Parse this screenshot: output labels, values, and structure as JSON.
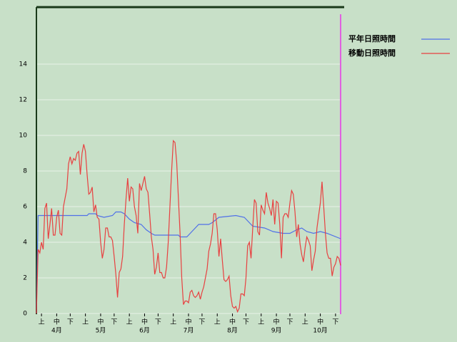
{
  "chart_data": {
    "type": "line",
    "x": [
      0,
      1,
      2,
      3,
      4,
      5,
      6,
      7,
      8,
      9,
      10,
      11,
      12,
      13,
      14,
      15,
      16,
      17,
      18,
      19,
      20,
      21,
      22,
      23,
      24,
      25,
      26,
      27,
      28,
      29,
      30,
      31,
      32,
      33,
      34,
      35,
      36,
      37,
      38,
      39,
      40,
      41,
      42,
      43,
      44,
      45,
      46,
      47,
      48,
      49,
      50,
      51,
      52,
      53,
      54,
      55,
      56,
      57,
      58,
      59,
      60,
      61,
      62,
      63,
      64,
      65,
      66,
      67,
      68,
      69,
      70,
      71,
      72,
      73,
      74,
      75,
      76,
      77,
      78,
      79,
      80,
      81,
      82,
      83,
      84,
      85,
      86,
      87,
      88,
      89,
      90,
      91,
      92,
      93,
      94,
      95,
      96,
      97,
      98,
      99,
      100,
      101,
      102,
      103,
      104,
      105,
      106,
      107,
      108,
      109,
      110,
      111,
      112,
      113,
      114,
      115,
      116,
      117,
      118,
      119,
      120,
      121,
      122,
      123,
      124,
      125,
      126,
      127,
      128,
      129,
      130,
      131,
      132,
      133,
      134,
      135,
      136,
      137,
      138,
      139,
      140,
      141,
      142,
      143,
      144,
      145,
      146,
      147,
      148,
      149,
      150,
      151,
      152,
      153,
      154,
      155,
      156,
      157,
      158,
      159,
      160,
      161,
      162,
      163,
      164,
      165,
      166,
      167,
      168,
      169,
      170,
      171,
      172,
      173,
      174,
      175,
      176,
      177,
      178,
      179,
      180
    ],
    "series": [
      {
        "name": "平年日照時間",
        "color": "#5070e8",
        "x": [
          0,
          1,
          30,
          31,
          35,
          36,
          40,
          45,
          47,
          50,
          52,
          55,
          58,
          62,
          65,
          68,
          70,
          84,
          85,
          89,
          92,
          96,
          102,
          104,
          108,
          118,
          123,
          128,
          135,
          140,
          146,
          150,
          154,
          157,
          160,
          164,
          168,
          172,
          180
        ],
        "values": [
          0,
          5.5,
          5.5,
          5.6,
          5.6,
          5.5,
          5.4,
          5.5,
          5.7,
          5.7,
          5.6,
          5.3,
          5.1,
          5.0,
          4.7,
          4.5,
          4.4,
          4.4,
          4.3,
          4.3,
          4.6,
          5.0,
          5.0,
          5.1,
          5.4,
          5.5,
          5.4,
          4.9,
          4.8,
          4.6,
          4.5,
          4.5,
          4.7,
          4.8,
          4.6,
          4.5,
          4.6,
          4.5,
          4.2
        ]
      },
      {
        "name": "移動日照時間",
        "color": "#e84040",
        "values": [
          0,
          3.6,
          3.4,
          4.0,
          3.6,
          5.9,
          6.2,
          4.2,
          5.0,
          5.9,
          4.4,
          4.4,
          5.4,
          5.8,
          4.5,
          4.4,
          6.0,
          6.5,
          7.0,
          8.4,
          8.8,
          8.4,
          8.7,
          8.6,
          9.0,
          9.1,
          7.8,
          9.0,
          9.5,
          9.1,
          7.8,
          6.7,
          6.8,
          7.1,
          5.7,
          6.1,
          5.4,
          5.3,
          4.0,
          3.1,
          3.6,
          4.8,
          4.8,
          4.3,
          4.3,
          4.1,
          3.2,
          2.2,
          0.9,
          2.3,
          2.5,
          3.2,
          5.0,
          6.4,
          7.6,
          6.3,
          7.1,
          7.0,
          6.0,
          5.5,
          4.5,
          7.3,
          6.9,
          7.3,
          7.7,
          7.0,
          6.8,
          5.6,
          4.3,
          3.6,
          2.2,
          2.6,
          3.4,
          2.3,
          2.3,
          2.0,
          2.0,
          2.6,
          4.0,
          6.0,
          8.0,
          9.7,
          9.6,
          8.5,
          6.5,
          4.5,
          2.0,
          0.5,
          0.7,
          0.7,
          0.6,
          1.2,
          1.3,
          1.0,
          0.9,
          1.0,
          1.2,
          0.8,
          1.2,
          1.5,
          2.0,
          2.5,
          3.5,
          3.9,
          4.5,
          5.6,
          5.6,
          4.7,
          3.2,
          4.2,
          3.0,
          1.9,
          1.8,
          1.9,
          2.1,
          1.0,
          0.4,
          0.3,
          0.4,
          0.1,
          0.3,
          1.1,
          1.1,
          1.0,
          2.0,
          3.8,
          4.0,
          3.1,
          4.8,
          6.4,
          6.2,
          4.6,
          4.4,
          6.1,
          5.8,
          5.6,
          6.8,
          6.2,
          5.9,
          5.5,
          6.4,
          5.0,
          6.3,
          6.2,
          5.0,
          3.1,
          5.4,
          5.6,
          5.6,
          5.4,
          6.2,
          6.9,
          6.7,
          5.7,
          4.3,
          5.0,
          3.9,
          3.3,
          2.9,
          3.7,
          4.3,
          4.1,
          3.8,
          2.4,
          3.0,
          3.5,
          4.8,
          5.5,
          6.2,
          7.4,
          6.0,
          4.5,
          3.4,
          3.1,
          3.1,
          2.1,
          2.6,
          2.8,
          3.2,
          3.1,
          2.7
        ]
      }
    ],
    "xlim": [
      0,
      180
    ],
    "xticks": [
      {
        "value": 3,
        "label": "上"
      },
      {
        "value": 12,
        "label": "中"
      },
      {
        "value": 20,
        "label": "下"
      },
      {
        "value": 29,
        "label": "上"
      },
      {
        "value": 38,
        "label": "中"
      },
      {
        "value": 46,
        "label": "下"
      },
      {
        "value": 55,
        "label": "上"
      },
      {
        "value": 64,
        "label": "中"
      },
      {
        "value": 72,
        "label": "下"
      },
      {
        "value": 81,
        "label": "上"
      },
      {
        "value": 90,
        "label": "中"
      },
      {
        "value": 98,
        "label": "下"
      },
      {
        "value": 107,
        "label": "上"
      },
      {
        "value": 116,
        "label": "中"
      },
      {
        "value": 124,
        "label": "下"
      },
      {
        "value": 133,
        "label": "上"
      },
      {
        "value": 142,
        "label": "中"
      },
      {
        "value": 150,
        "label": "下"
      },
      {
        "value": 159,
        "label": "上"
      },
      {
        "value": 168,
        "label": "中"
      },
      {
        "value": 177,
        "label": "下"
      }
    ],
    "month_labels": [
      {
        "value": 12,
        "label": "4月"
      },
      {
        "value": 38,
        "label": "5月"
      },
      {
        "value": 64,
        "label": "6月"
      },
      {
        "value": 90,
        "label": "7月"
      },
      {
        "value": 116,
        "label": "8月"
      },
      {
        "value": 142,
        "label": "9月"
      },
      {
        "value": 168,
        "label": "10月"
      }
    ],
    "ylim": [
      0,
      17.2
    ],
    "yticks": [
      0,
      2,
      4,
      6,
      8,
      10,
      12,
      14
    ],
    "grid": true
  }
}
